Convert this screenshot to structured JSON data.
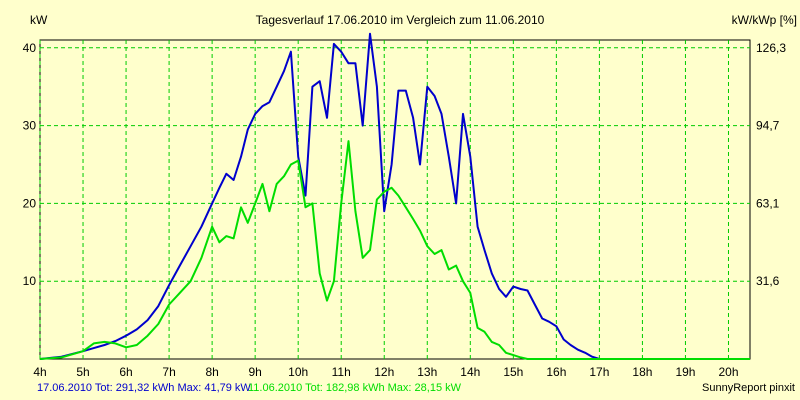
{
  "chart_data": {
    "type": "line",
    "title": "Tagesverlauf 17.06.2010 im Vergleich zum 11.06.2010",
    "ylabel_left": "kW",
    "ylabel_right": "kW/kWp [%]",
    "xlim": [
      4,
      20.5
    ],
    "ylim": [
      0,
      41
    ],
    "x_ticks": [
      4,
      5,
      6,
      7,
      8,
      9,
      10,
      11,
      12,
      13,
      14,
      15,
      16,
      17,
      18,
      19,
      20
    ],
    "x_tick_labels": [
      "4h",
      "5h",
      "6h",
      "7h",
      "8h",
      "9h",
      "10h",
      "11h",
      "12h",
      "13h",
      "14h",
      "15h",
      "16h",
      "17h",
      "18h",
      "19h",
      "20h"
    ],
    "y_left_ticks": [
      10,
      20,
      30,
      40
    ],
    "y_left_tick_labels": [
      "10",
      "20",
      "30",
      "40"
    ],
    "y_right_ticks": [
      10,
      20,
      30,
      40
    ],
    "y_right_tick_labels": [
      "31,6",
      "63,1",
      "94,7",
      "126,3"
    ],
    "grid": true,
    "colors": {
      "background": "#FFFFCC",
      "plot_background": "#FFFFCC",
      "grid": "#00CC00",
      "series_1": "#0000CC",
      "series_2": "#00DD00"
    },
    "series": [
      {
        "name": "17.06.2010",
        "color": "#0000CC",
        "x": [
          4.0,
          4.5,
          5.0,
          5.25,
          5.5,
          5.75,
          6.0,
          6.25,
          6.5,
          6.75,
          7.0,
          7.25,
          7.5,
          7.75,
          8.0,
          8.17,
          8.33,
          8.5,
          8.67,
          8.83,
          9.0,
          9.17,
          9.33,
          9.5,
          9.67,
          9.83,
          10.0,
          10.17,
          10.33,
          10.5,
          10.67,
          10.83,
          11.0,
          11.17,
          11.33,
          11.5,
          11.67,
          11.83,
          12.0,
          12.17,
          12.33,
          12.5,
          12.67,
          12.83,
          13.0,
          13.17,
          13.33,
          13.5,
          13.67,
          13.83,
          14.0,
          14.17,
          14.33,
          14.5,
          14.67,
          14.83,
          15.0,
          15.17,
          15.33,
          15.5,
          15.67,
          15.83,
          16.0,
          16.17,
          16.33,
          16.5,
          16.67,
          16.83,
          17.0,
          17.17,
          17.33,
          17.5,
          17.67,
          17.83,
          18.0,
          18.17,
          18.33,
          18.5,
          18.67,
          18.83,
          19.0,
          19.17,
          19.33,
          19.5,
          19.67,
          19.83,
          20.0,
          20.5
        ],
        "y": [
          0.0,
          0.3,
          1.0,
          1.4,
          1.8,
          2.3,
          3.0,
          3.8,
          5.0,
          6.8,
          9.5,
          12.0,
          14.5,
          17.0,
          20.0,
          22.0,
          23.8,
          23.0,
          26.0,
          29.5,
          31.5,
          32.5,
          33.0,
          35.0,
          37.0,
          39.5,
          26.0,
          21.0,
          35.0,
          35.7,
          31.0,
          40.5,
          39.5,
          38.0,
          38.0,
          30.0,
          41.8,
          35.0,
          19.0,
          25.0,
          34.5,
          34.5,
          31.0,
          25.0,
          35.0,
          33.8,
          31.5,
          26.0,
          20.0,
          31.5,
          26.0,
          17.0,
          14.0,
          11.0,
          9.0,
          8.0,
          9.3,
          9.0,
          8.8,
          7.0,
          5.2,
          4.8,
          4.2,
          2.5,
          1.8,
          1.2,
          0.8,
          0.3,
          0.0,
          0.0,
          0.0,
          0.0,
          0.0,
          0.0,
          0.0,
          0.0,
          0.0,
          0.0,
          0.0,
          0.0,
          0.0,
          0.0,
          0.0,
          0.0,
          0.0,
          0.0,
          0.0,
          0.0
        ]
      },
      {
        "name": "11.06.2010",
        "color": "#00DD00",
        "x": [
          4.0,
          4.5,
          5.0,
          5.25,
          5.5,
          5.75,
          6.0,
          6.25,
          6.5,
          6.75,
          7.0,
          7.25,
          7.5,
          7.75,
          8.0,
          8.17,
          8.33,
          8.5,
          8.67,
          8.83,
          9.0,
          9.17,
          9.33,
          9.5,
          9.67,
          9.83,
          10.0,
          10.17,
          10.33,
          10.5,
          10.67,
          10.83,
          11.0,
          11.17,
          11.33,
          11.5,
          11.67,
          11.83,
          12.0,
          12.17,
          12.33,
          12.5,
          12.67,
          12.83,
          13.0,
          13.17,
          13.33,
          13.5,
          13.67,
          13.83,
          14.0,
          14.17,
          14.33,
          14.5,
          14.67,
          14.83,
          15.0,
          15.17,
          15.33,
          15.5,
          15.67,
          15.83,
          16.0,
          16.17,
          16.33,
          16.5,
          16.67,
          16.83,
          17.0,
          17.17,
          17.33,
          17.5,
          17.67,
          17.83,
          18.0,
          18.17,
          18.33,
          18.5,
          18.67,
          18.83,
          19.0,
          19.17,
          19.33,
          19.5,
          19.67,
          19.83,
          20.0,
          20.5
        ],
        "y": [
          0.0,
          0.2,
          1.0,
          2.0,
          2.2,
          2.0,
          1.5,
          1.8,
          3.0,
          4.5,
          7.0,
          8.5,
          10.0,
          13.0,
          17.0,
          15.0,
          15.8,
          15.5,
          19.5,
          17.5,
          20.0,
          22.5,
          19.0,
          22.5,
          23.5,
          25.0,
          25.5,
          19.5,
          20.0,
          11.0,
          7.5,
          10.0,
          20.0,
          28.0,
          19.0,
          13.0,
          14.0,
          20.5,
          21.5,
          22.0,
          21.0,
          19.5,
          18.0,
          16.5,
          14.5,
          13.5,
          14.0,
          11.5,
          12.0,
          10.0,
          8.5,
          4.0,
          3.5,
          2.2,
          1.8,
          0.8,
          0.5,
          0.2,
          0.0,
          0.0,
          0.0,
          0.0,
          0.0,
          0.0,
          0.0,
          0.0,
          0.0,
          0.0,
          0.0,
          0.0,
          0.0,
          0.0,
          0.0,
          0.0,
          0.0,
          0.0,
          0.0,
          0.0,
          0.0,
          0.0,
          0.0,
          0.0,
          0.0,
          0.0,
          0.0,
          0.0,
          0.0,
          0.0
        ]
      }
    ]
  },
  "footer": {
    "series_1_summary": "17.06.2010 Tot: 291,32 kWh Max: 41,79 kW",
    "series_2_summary": "11.06.2010 Tot: 182,98 kWh Max: 28,15 kW",
    "credit": "SunnyReport pinxit"
  }
}
